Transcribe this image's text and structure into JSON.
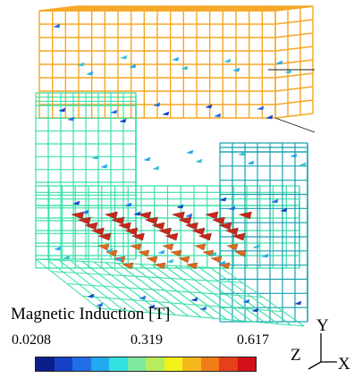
{
  "legend": {
    "title": "Magnetic Induction [T]",
    "ticks": [
      "0.0208",
      "0.319",
      "0.617"
    ],
    "colormap": [
      "#0a1f8c",
      "#1540c8",
      "#1f6fe6",
      "#22a9ee",
      "#33e0e0",
      "#7fe8a0",
      "#b8ec5c",
      "#f2f21a",
      "#f5b81c",
      "#f07d1a",
      "#e5401a",
      "#d4101a"
    ]
  },
  "axes": {
    "x": "X",
    "y": "Y",
    "z": "Z"
  },
  "colors": {
    "armature": "#f5a623",
    "core": "#3be0a8",
    "core_dark": "#1aa0b0",
    "field_hot": "#c8281a"
  }
}
